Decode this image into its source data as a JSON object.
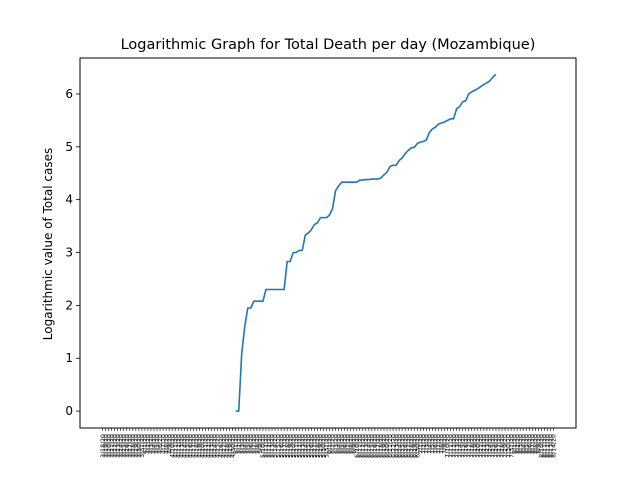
{
  "chart_data": {
    "type": "line",
    "title": "Logarithmic Graph for Total Death per day (Mozambique)",
    "xlabel": "",
    "ylabel": "Logarithmic value of Total cases",
    "ylim": [
      -0.32,
      6.68
    ],
    "yticks": [
      0,
      1,
      2,
      3,
      4,
      5,
      6
    ],
    "grid": false,
    "legend": "none",
    "line_color": "#1f77b4",
    "x_first_date": "3/18/20",
    "x_last_date": "8/14/20",
    "x_tick_label_samples": [
      "3/18/20",
      "3/23/20",
      "3/28/20",
      "4/2/20",
      "4/7/20",
      "4/12/20",
      "4/17/20",
      "4/22/20",
      "4/27/20",
      "5/2/20",
      "5/7/20",
      "5/12/20",
      "5/17/20",
      "5/22/20",
      "5/27/20",
      "6/1/20",
      "6/6/20",
      "6/11/20",
      "6/16/20",
      "6/21/20",
      "6/26/20",
      "7/1/20",
      "7/6/20",
      "7/11/20",
      "7/16/20",
      "7/21/20",
      "7/26/20",
      "7/31/20",
      "8/5/20",
      "8/10/20",
      "8/14/20"
    ],
    "points": [
      [
        "5/1/20",
        0.0
      ],
      [
        "5/2/20",
        0.0
      ],
      [
        "5/3/20",
        1.1
      ],
      [
        "5/4/20",
        1.6
      ],
      [
        "5/5/20",
        1.95
      ],
      [
        "5/6/20",
        1.95
      ],
      [
        "5/7/20",
        2.08
      ],
      [
        "5/8/20",
        2.08
      ],
      [
        "5/9/20",
        2.08
      ],
      [
        "5/10/20",
        2.08
      ],
      [
        "5/11/20",
        2.3
      ],
      [
        "5/12/20",
        2.3
      ],
      [
        "5/13/20",
        2.3
      ],
      [
        "5/14/20",
        2.3
      ],
      [
        "5/15/20",
        2.3
      ],
      [
        "5/16/20",
        2.3
      ],
      [
        "5/17/20",
        2.3
      ],
      [
        "5/18/20",
        2.83
      ],
      [
        "5/19/20",
        2.83
      ],
      [
        "5/20/20",
        3.0
      ],
      [
        "5/21/20",
        3.0
      ],
      [
        "5/22/20",
        3.04
      ],
      [
        "5/23/20",
        3.04
      ],
      [
        "5/24/20",
        3.33
      ],
      [
        "5/25/20",
        3.37
      ],
      [
        "5/26/20",
        3.43
      ],
      [
        "5/27/20",
        3.53
      ],
      [
        "5/28/20",
        3.56
      ],
      [
        "5/29/20",
        3.66
      ],
      [
        "5/30/20",
        3.66
      ],
      [
        "5/31/20",
        3.66
      ],
      [
        "6/1/20",
        3.71
      ],
      [
        "6/2/20",
        3.83
      ],
      [
        "6/3/20",
        4.17
      ],
      [
        "6/4/20",
        4.26
      ],
      [
        "6/5/20",
        4.33
      ],
      [
        "6/6/20",
        4.33
      ],
      [
        "6/7/20",
        4.33
      ],
      [
        "6/8/20",
        4.33
      ],
      [
        "6/9/20",
        4.33
      ],
      [
        "6/10/20",
        4.33
      ],
      [
        "6/11/20",
        4.37
      ],
      [
        "6/12/20",
        4.37
      ],
      [
        "6/13/20",
        4.38
      ],
      [
        "6/14/20",
        4.38
      ],
      [
        "6/15/20",
        4.39
      ],
      [
        "6/16/20",
        4.39
      ],
      [
        "6/17/20",
        4.39
      ],
      [
        "6/18/20",
        4.41
      ],
      [
        "6/19/20",
        4.47
      ],
      [
        "6/20/20",
        4.52
      ],
      [
        "6/21/20",
        4.63
      ],
      [
        "6/22/20",
        4.65
      ],
      [
        "6/23/20",
        4.65
      ],
      [
        "6/24/20",
        4.74
      ],
      [
        "6/25/20",
        4.79
      ],
      [
        "6/26/20",
        4.87
      ],
      [
        "6/27/20",
        4.93
      ],
      [
        "6/28/20",
        4.98
      ],
      [
        "6/29/20",
        4.99
      ],
      [
        "6/30/20",
        5.06
      ],
      [
        "7/1/20",
        5.09
      ],
      [
        "7/2/20",
        5.1
      ],
      [
        "7/3/20",
        5.13
      ],
      [
        "7/4/20",
        5.27
      ],
      [
        "7/5/20",
        5.34
      ],
      [
        "7/6/20",
        5.37
      ],
      [
        "7/7/20",
        5.43
      ],
      [
        "7/8/20",
        5.45
      ],
      [
        "7/9/20",
        5.47
      ],
      [
        "7/10/20",
        5.5
      ],
      [
        "7/11/20",
        5.53
      ],
      [
        "7/12/20",
        5.53
      ],
      [
        "7/13/20",
        5.72
      ],
      [
        "7/14/20",
        5.76
      ],
      [
        "7/15/20",
        5.85
      ],
      [
        "7/16/20",
        5.87
      ],
      [
        "7/17/20",
        6.0
      ],
      [
        "7/18/20",
        6.04
      ],
      [
        "7/19/20",
        6.07
      ],
      [
        "7/20/20",
        6.1
      ],
      [
        "7/21/20",
        6.14
      ],
      [
        "7/22/20",
        6.18
      ],
      [
        "7/23/20",
        6.21
      ],
      [
        "7/24/20",
        6.25
      ],
      [
        "7/25/20",
        6.32
      ],
      [
        "7/26/20",
        6.37
      ]
    ]
  }
}
